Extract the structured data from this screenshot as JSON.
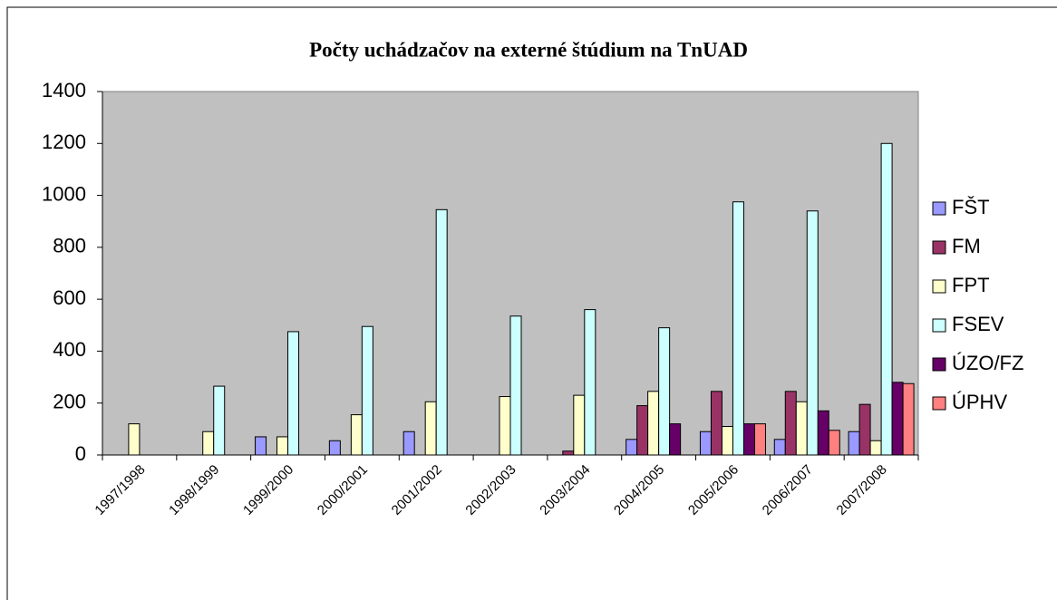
{
  "chart_data": {
    "type": "bar",
    "title": "Počty uchádzačov na externé štúdium na TnUAD",
    "categories": [
      "1997/1998",
      "1998/1999",
      "1999/2000",
      "2000/2001",
      "2001/2002",
      "2002/2003",
      "2003/2004",
      "2004/2005",
      "2005/2006",
      "2006/2007",
      "2007/2008"
    ],
    "series": [
      {
        "name": "FŠT",
        "color": "#9999ff",
        "values": [
          0,
          0,
          70,
          55,
          90,
          0,
          0,
          60,
          90,
          60,
          90
        ]
      },
      {
        "name": "FM",
        "color": "#993366",
        "values": [
          0,
          0,
          0,
          0,
          0,
          0,
          15,
          190,
          245,
          245,
          195
        ]
      },
      {
        "name": "FPT",
        "color": "#ffffcc",
        "values": [
          120,
          90,
          70,
          155,
          205,
          225,
          230,
          245,
          110,
          205,
          55
        ]
      },
      {
        "name": "FSEV",
        "color": "#ccffff",
        "values": [
          0,
          265,
          475,
          495,
          945,
          535,
          560,
          490,
          975,
          940,
          1200
        ]
      },
      {
        "name": "ÚZO/FZ",
        "color": "#660066",
        "values": [
          0,
          0,
          0,
          0,
          0,
          0,
          0,
          120,
          120,
          170,
          280
        ]
      },
      {
        "name": "ÚPHV",
        "color": "#ff8080",
        "values": [
          0,
          0,
          0,
          0,
          0,
          0,
          0,
          0,
          120,
          95,
          275
        ]
      }
    ],
    "ylim": [
      0,
      1400
    ],
    "yticks": [
      0,
      200,
      400,
      600,
      800,
      1000,
      1200,
      1400
    ],
    "grid": false,
    "legend": "right",
    "plot_background": "#c0c0c0"
  }
}
